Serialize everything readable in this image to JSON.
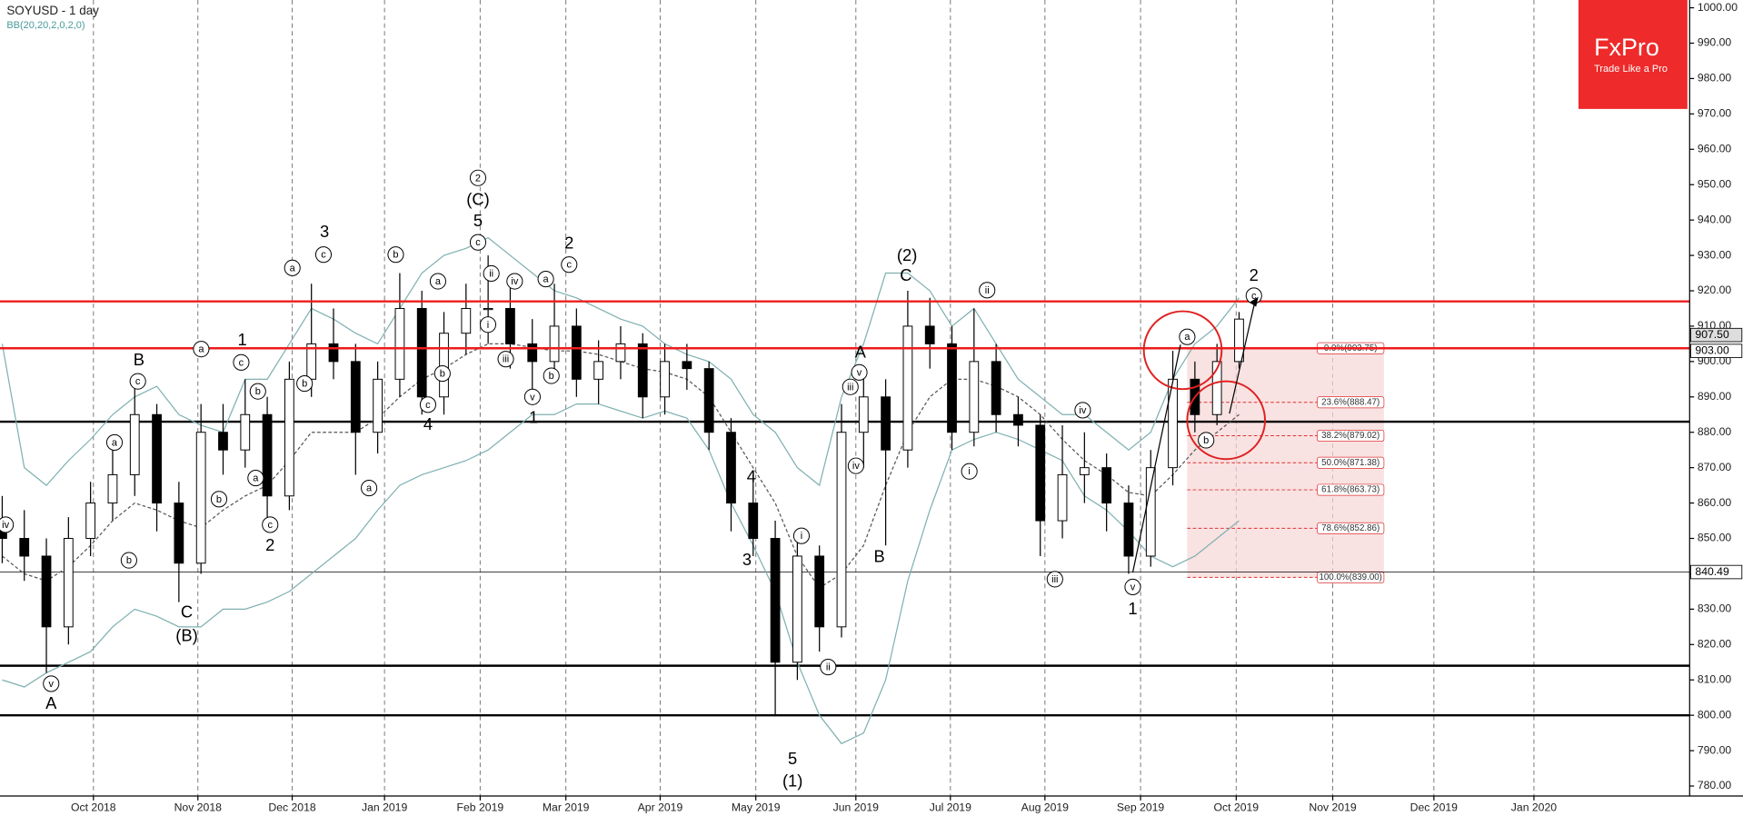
{
  "chart_data": {
    "type": "candlestick",
    "title": "SOYUSD - 1 day",
    "subtitle": "BB(20,20,2,0,2,0)",
    "open": [
      855,
      850,
      845,
      825,
      850,
      860,
      868,
      885,
      860,
      843,
      880,
      875,
      885,
      862,
      895,
      905,
      900,
      880,
      895,
      915,
      890,
      908,
      915,
      915,
      905,
      900,
      910,
      895,
      900,
      905,
      890,
      900,
      898,
      880,
      860,
      850,
      815,
      845,
      825,
      880,
      890,
      875,
      910,
      905,
      880,
      900,
      885,
      882,
      855,
      868,
      870,
      860,
      845,
      870,
      895,
      885,
      900
    ],
    "high": [
      862,
      858,
      850,
      856,
      866,
      875,
      893,
      888,
      866,
      888,
      888,
      895,
      890,
      900,
      922,
      915,
      905,
      900,
      925,
      920,
      914,
      922,
      930,
      922,
      912,
      922,
      915,
      906,
      910,
      908,
      905,
      905,
      900,
      884,
      868,
      855,
      850,
      848,
      888,
      897,
      895,
      920,
      918,
      910,
      915,
      905,
      890,
      885,
      882,
      880,
      874,
      865,
      875,
      903,
      900,
      905,
      914
    ],
    "low": [
      843,
      838,
      812,
      820,
      845,
      855,
      862,
      852,
      832,
      840,
      868,
      870,
      855,
      858,
      890,
      895,
      868,
      874,
      890,
      885,
      885,
      902,
      905,
      898,
      890,
      895,
      890,
      888,
      895,
      884,
      885,
      892,
      875,
      852,
      845,
      800,
      810,
      818,
      822,
      870,
      848,
      870,
      898,
      875,
      876,
      880,
      876,
      845,
      850,
      860,
      852,
      840,
      842,
      865,
      880,
      882,
      898
    ],
    "close": [
      850,
      845,
      825,
      850,
      860,
      868,
      885,
      860,
      843,
      880,
      875,
      885,
      862,
      895,
      905,
      900,
      880,
      895,
      915,
      890,
      908,
      915,
      915,
      905,
      900,
      910,
      895,
      900,
      905,
      890,
      900,
      898,
      880,
      860,
      850,
      815,
      845,
      825,
      880,
      890,
      875,
      910,
      905,
      880,
      900,
      885,
      882,
      855,
      868,
      870,
      860,
      845,
      870,
      895,
      885,
      900,
      912
    ],
    "up_color": "#ffffff",
    "down_color": "#000000",
    "bb_color": "#7fb0b0",
    "bb_upper": [
      905,
      870,
      865,
      872,
      878,
      885,
      890,
      893,
      885,
      882,
      880,
      895,
      895,
      905,
      915,
      912,
      908,
      905,
      915,
      925,
      930,
      932,
      935,
      930,
      925,
      920,
      918,
      915,
      912,
      910,
      905,
      902,
      900,
      895,
      885,
      880,
      870,
      865,
      890,
      905,
      925,
      925,
      920,
      910,
      915,
      905,
      895,
      890,
      885,
      885,
      880,
      875,
      880,
      895,
      905,
      910,
      918
    ],
    "bb_middle": [
      845,
      840,
      838,
      842,
      848,
      855,
      860,
      858,
      855,
      853,
      858,
      862,
      865,
      872,
      880,
      880,
      880,
      884,
      890,
      895,
      898,
      902,
      905,
      905,
      904,
      903,
      903,
      902,
      900,
      898,
      897,
      895,
      890,
      880,
      870,
      860,
      845,
      836,
      840,
      848,
      865,
      880,
      890,
      895,
      895,
      893,
      890,
      885,
      878,
      872,
      868,
      863,
      862,
      868,
      875,
      880,
      885
    ],
    "bb_lower": [
      810,
      808,
      812,
      815,
      818,
      825,
      830,
      828,
      825,
      825,
      830,
      830,
      832,
      835,
      840,
      845,
      850,
      858,
      865,
      868,
      870,
      872,
      875,
      880,
      885,
      885,
      888,
      888,
      886,
      884,
      886,
      884,
      875,
      860,
      848,
      835,
      815,
      800,
      792,
      795,
      810,
      838,
      858,
      875,
      878,
      880,
      878,
      875,
      872,
      862,
      858,
      852,
      845,
      842,
      845,
      850,
      855
    ],
    "xlim": [
      -0.1,
      76.4
    ],
    "xticks": [
      {
        "value": 4.13,
        "label": "Oct 2018"
      },
      {
        "value": 8.86,
        "label": "Nov 2018"
      },
      {
        "value": 13.13,
        "label": "Dec 2018"
      },
      {
        "value": 17.31,
        "label": "Jan 2019"
      },
      {
        "value": 21.64,
        "label": "Feb 2019"
      },
      {
        "value": 25.52,
        "label": "Mar 2019"
      },
      {
        "value": 29.79,
        "label": "Apr 2019"
      },
      {
        "value": 34.12,
        "label": "May 2019"
      },
      {
        "value": 38.65,
        "label": "Jun 2019"
      },
      {
        "value": 42.93,
        "label": "Jul 2019"
      },
      {
        "value": 47.21,
        "label": "Aug 2019"
      },
      {
        "value": 51.54,
        "label": "Sep 2019"
      },
      {
        "value": 55.87,
        "label": "Oct 2019"
      },
      {
        "value": 60.24,
        "label": "Nov 2019"
      },
      {
        "value": 64.82,
        "label": "Dec 2019"
      },
      {
        "value": 69.35,
        "label": "Jan 2020"
      }
    ],
    "ylim": [
      777.5,
      1002.2
    ],
    "yticks": [
      {
        "value": 780,
        "label": "780.00"
      },
      {
        "value": 790,
        "label": "790.00"
      },
      {
        "value": 800,
        "label": "800.00"
      },
      {
        "value": 810,
        "label": "810.00"
      },
      {
        "value": 820,
        "label": "820.00"
      },
      {
        "value": 830,
        "label": "830.00"
      },
      {
        "value": 840,
        "label": "840.00"
      },
      {
        "value": 850,
        "label": "850.00"
      },
      {
        "value": 860,
        "label": "860.00"
      },
      {
        "value": 870,
        "label": "870.00"
      },
      {
        "value": 880,
        "label": "880.00"
      },
      {
        "value": 890,
        "label": "890.00"
      },
      {
        "value": 900,
        "label": "900.00"
      },
      {
        "value": 910,
        "label": "910.00"
      },
      {
        "value": 920,
        "label": "920.00"
      },
      {
        "value": 930,
        "label": "930.00"
      },
      {
        "value": 940,
        "label": "940.00"
      },
      {
        "value": 950,
        "label": "950.00"
      },
      {
        "value": 960,
        "label": "960.00"
      },
      {
        "value": 970,
        "label": "970.00"
      },
      {
        "value": 980,
        "label": "980.00"
      },
      {
        "value": 990,
        "label": "990.00"
      },
      {
        "value": 1000,
        "label": "1000.00"
      }
    ],
    "grid": true,
    "red_levels": [
      917,
      903.75
    ],
    "red_level_color": "#ee1c1c",
    "black_levels": [
      883,
      814,
      800
    ],
    "thin_levels": [
      840.49
    ],
    "price_tags": [
      {
        "value": 907.5,
        "label": "907.50"
      },
      {
        "value": 903,
        "label": "903.00"
      },
      {
        "value": 840.49,
        "label": "840.49"
      }
    ],
    "fib_levels": [
      {
        "value": 903.75,
        "label": "0.0%(903.75)"
      },
      {
        "value": 888.47,
        "label": "23.6%(888.47)"
      },
      {
        "value": 879.02,
        "label": "38.2%(879.02)"
      },
      {
        "value": 871.38,
        "label": "50.0%(871.38)"
      },
      {
        "value": 863.73,
        "label": "61.8%(863.73)"
      },
      {
        "value": 852.86,
        "label": "78.6%(852.86)"
      },
      {
        "value": 839,
        "label": "100.0%(839.00)"
      }
    ],
    "annotations": [
      "iv",
      "v",
      "A",
      "a",
      "B",
      "c",
      "b",
      "C",
      "(B)",
      "a",
      "1",
      "c",
      "b",
      "a",
      "b",
      "c",
      "2",
      "a",
      "b",
      "3",
      "c",
      "a",
      "b",
      "a",
      "b",
      "c",
      "4",
      "2",
      "(C)",
      "5",
      "c",
      "ii",
      "i",
      "iv",
      "iii",
      "v",
      "1",
      "a",
      "b",
      "2",
      "c",
      "4",
      "3",
      "i",
      "ii",
      "5",
      "(1)",
      "A",
      "v",
      "iii",
      "iv",
      "B",
      "(2)",
      "C",
      "ii",
      "i",
      "iv",
      "iii",
      "v",
      "1",
      "a",
      "b",
      "2",
      "c"
    ],
    "logo": {
      "brand": "FxPro",
      "tagline": "Trade Like a Pro",
      "color": "#ee2a2a"
    }
  }
}
